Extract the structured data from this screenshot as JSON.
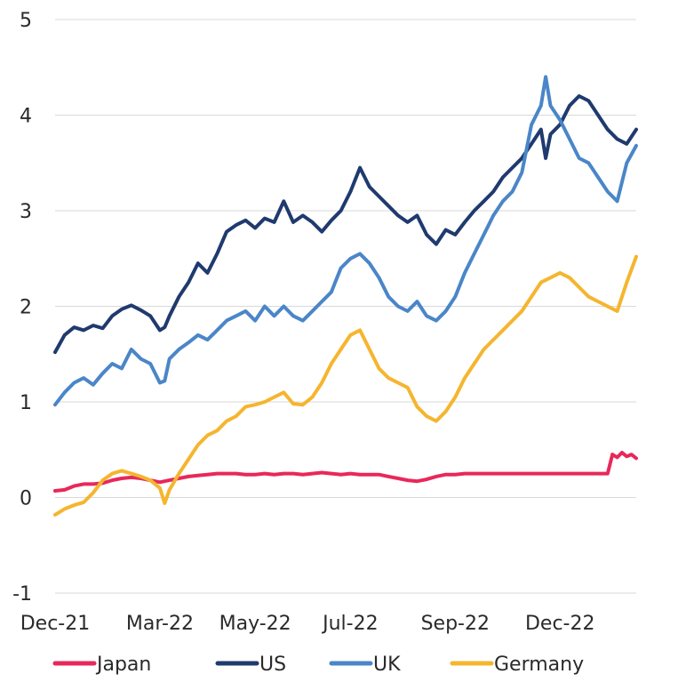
{
  "chart_data": {
    "type": "line",
    "title": "",
    "xlabel": "",
    "ylabel": "",
    "ylim": [
      -1,
      5
    ],
    "yticks": [
      "5",
      "4",
      "3",
      "2",
      "1",
      "0",
      "-1"
    ],
    "xlim": [
      0,
      61
    ],
    "xtick_positions": [
      0,
      11,
      21,
      31,
      42,
      53
    ],
    "xticks": [
      "Dec-21",
      "Mar-22",
      "May-22",
      "Jul-22",
      "Sep-22",
      "Dec-22"
    ],
    "grid": true,
    "legend": "bottom",
    "series": [
      {
        "name": "Japan",
        "color": "#e8285a",
        "points": [
          [
            0,
            0.07
          ],
          [
            1,
            0.08
          ],
          [
            2,
            0.12
          ],
          [
            3,
            0.14
          ],
          [
            4,
            0.14
          ],
          [
            5,
            0.15
          ],
          [
            6,
            0.18
          ],
          [
            7,
            0.2
          ],
          [
            8,
            0.21
          ],
          [
            9,
            0.2
          ],
          [
            10,
            0.18
          ],
          [
            11,
            0.16
          ],
          [
            12,
            0.18
          ],
          [
            13,
            0.2
          ],
          [
            14,
            0.22
          ],
          [
            15,
            0.23
          ],
          [
            16,
            0.24
          ],
          [
            17,
            0.25
          ],
          [
            18,
            0.25
          ],
          [
            19,
            0.25
          ],
          [
            20,
            0.24
          ],
          [
            21,
            0.24
          ],
          [
            22,
            0.25
          ],
          [
            23,
            0.24
          ],
          [
            24,
            0.25
          ],
          [
            25,
            0.25
          ],
          [
            26,
            0.24
          ],
          [
            27,
            0.25
          ],
          [
            28,
            0.26
          ],
          [
            29,
            0.25
          ],
          [
            30,
            0.24
          ],
          [
            31,
            0.25
          ],
          [
            32,
            0.24
          ],
          [
            33,
            0.24
          ],
          [
            34,
            0.24
          ],
          [
            35,
            0.22
          ],
          [
            36,
            0.2
          ],
          [
            37,
            0.18
          ],
          [
            38,
            0.17
          ],
          [
            39,
            0.19
          ],
          [
            40,
            0.22
          ],
          [
            41,
            0.24
          ],
          [
            42,
            0.24
          ],
          [
            43,
            0.25
          ],
          [
            44,
            0.25
          ],
          [
            45,
            0.25
          ],
          [
            46,
            0.25
          ],
          [
            47,
            0.25
          ],
          [
            48,
            0.25
          ],
          [
            49,
            0.25
          ],
          [
            50,
            0.25
          ],
          [
            51,
            0.25
          ],
          [
            52,
            0.25
          ],
          [
            53,
            0.25
          ],
          [
            54,
            0.25
          ],
          [
            55,
            0.25
          ],
          [
            56,
            0.25
          ],
          [
            57,
            0.25
          ],
          [
            58,
            0.25
          ],
          [
            58.5,
            0.45
          ],
          [
            59,
            0.42
          ],
          [
            59.5,
            0.47
          ],
          [
            60,
            0.43
          ],
          [
            60.5,
            0.45
          ],
          [
            61,
            0.41
          ]
        ]
      },
      {
        "name": "US",
        "color": "#1f3a6e",
        "points": [
          [
            0,
            1.52
          ],
          [
            1,
            1.7
          ],
          [
            2,
            1.78
          ],
          [
            3,
            1.75
          ],
          [
            4,
            1.8
          ],
          [
            5,
            1.77
          ],
          [
            6,
            1.9
          ],
          [
            7,
            1.97
          ],
          [
            8,
            2.01
          ],
          [
            9,
            1.96
          ],
          [
            10,
            1.9
          ],
          [
            11,
            1.75
          ],
          [
            11.5,
            1.78
          ],
          [
            12,
            1.9
          ],
          [
            13,
            2.1
          ],
          [
            14,
            2.25
          ],
          [
            15,
            2.45
          ],
          [
            16,
            2.35
          ],
          [
            17,
            2.55
          ],
          [
            18,
            2.78
          ],
          [
            19,
            2.85
          ],
          [
            20,
            2.9
          ],
          [
            21,
            2.82
          ],
          [
            22,
            2.92
          ],
          [
            23,
            2.88
          ],
          [
            24,
            3.1
          ],
          [
            25,
            2.88
          ],
          [
            26,
            2.95
          ],
          [
            27,
            2.88
          ],
          [
            28,
            2.78
          ],
          [
            29,
            2.9
          ],
          [
            30,
            3.0
          ],
          [
            31,
            3.2
          ],
          [
            32,
            3.45
          ],
          [
            33,
            3.25
          ],
          [
            34,
            3.15
          ],
          [
            35,
            3.05
          ],
          [
            36,
            2.95
          ],
          [
            37,
            2.88
          ],
          [
            38,
            2.95
          ],
          [
            39,
            2.75
          ],
          [
            40,
            2.65
          ],
          [
            41,
            2.8
          ],
          [
            42,
            2.75
          ],
          [
            43,
            2.88
          ],
          [
            44,
            3.0
          ],
          [
            45,
            3.1
          ],
          [
            46,
            3.2
          ],
          [
            47,
            3.35
          ],
          [
            48,
            3.45
          ],
          [
            49,
            3.55
          ],
          [
            50,
            3.7
          ],
          [
            51,
            3.85
          ],
          [
            51.5,
            3.55
          ],
          [
            52,
            3.8
          ],
          [
            53,
            3.9
          ],
          [
            54,
            4.1
          ],
          [
            55,
            4.2
          ],
          [
            56,
            4.15
          ],
          [
            57,
            4.0
          ],
          [
            58,
            3.85
          ],
          [
            59,
            3.75
          ],
          [
            60,
            3.7
          ],
          [
            61,
            3.85
          ]
        ]
      },
      {
        "name": "UK",
        "color": "#4a86c8",
        "points": [
          [
            0,
            0.97
          ],
          [
            1,
            1.1
          ],
          [
            2,
            1.2
          ],
          [
            3,
            1.25
          ],
          [
            4,
            1.18
          ],
          [
            5,
            1.3
          ],
          [
            6,
            1.4
          ],
          [
            7,
            1.35
          ],
          [
            8,
            1.55
          ],
          [
            9,
            1.45
          ],
          [
            10,
            1.4
          ],
          [
            11,
            1.2
          ],
          [
            11.5,
            1.22
          ],
          [
            12,
            1.45
          ],
          [
            13,
            1.55
          ],
          [
            14,
            1.62
          ],
          [
            15,
            1.7
          ],
          [
            16,
            1.65
          ],
          [
            17,
            1.75
          ],
          [
            18,
            1.85
          ],
          [
            19,
            1.9
          ],
          [
            20,
            1.95
          ],
          [
            21,
            1.85
          ],
          [
            22,
            2.0
          ],
          [
            23,
            1.9
          ],
          [
            24,
            2.0
          ],
          [
            25,
            1.9
          ],
          [
            26,
            1.85
          ],
          [
            27,
            1.95
          ],
          [
            28,
            2.05
          ],
          [
            29,
            2.15
          ],
          [
            30,
            2.4
          ],
          [
            31,
            2.5
          ],
          [
            32,
            2.55
          ],
          [
            33,
            2.45
          ],
          [
            34,
            2.3
          ],
          [
            35,
            2.1
          ],
          [
            36,
            2.0
          ],
          [
            37,
            1.95
          ],
          [
            38,
            2.05
          ],
          [
            39,
            1.9
          ],
          [
            40,
            1.85
          ],
          [
            41,
            1.95
          ],
          [
            42,
            2.1
          ],
          [
            43,
            2.35
          ],
          [
            44,
            2.55
          ],
          [
            45,
            2.75
          ],
          [
            46,
            2.95
          ],
          [
            47,
            3.1
          ],
          [
            48,
            3.2
          ],
          [
            49,
            3.4
          ],
          [
            50,
            3.9
          ],
          [
            51,
            4.1
          ],
          [
            51.5,
            4.4
          ],
          [
            52,
            4.1
          ],
          [
            53,
            3.95
          ],
          [
            54,
            3.75
          ],
          [
            55,
            3.55
          ],
          [
            56,
            3.5
          ],
          [
            57,
            3.35
          ],
          [
            58,
            3.2
          ],
          [
            59,
            3.1
          ],
          [
            60,
            3.5
          ],
          [
            61,
            3.68
          ]
        ]
      },
      {
        "name": "Germany",
        "color": "#f5b52e",
        "points": [
          [
            0,
            -0.18
          ],
          [
            1,
            -0.12
          ],
          [
            2,
            -0.08
          ],
          [
            3,
            -0.05
          ],
          [
            4,
            0.05
          ],
          [
            5,
            0.18
          ],
          [
            6,
            0.25
          ],
          [
            7,
            0.28
          ],
          [
            8,
            0.25
          ],
          [
            9,
            0.22
          ],
          [
            10,
            0.18
          ],
          [
            11,
            0.1
          ],
          [
            11.5,
            -0.06
          ],
          [
            12,
            0.08
          ],
          [
            13,
            0.25
          ],
          [
            14,
            0.4
          ],
          [
            15,
            0.55
          ],
          [
            16,
            0.65
          ],
          [
            17,
            0.7
          ],
          [
            18,
            0.8
          ],
          [
            19,
            0.85
          ],
          [
            20,
            0.95
          ],
          [
            21,
            0.97
          ],
          [
            22,
            1.0
          ],
          [
            23,
            1.05
          ],
          [
            24,
            1.1
          ],
          [
            25,
            0.98
          ],
          [
            26,
            0.97
          ],
          [
            27,
            1.05
          ],
          [
            28,
            1.2
          ],
          [
            29,
            1.4
          ],
          [
            30,
            1.55
          ],
          [
            31,
            1.7
          ],
          [
            32,
            1.75
          ],
          [
            33,
            1.55
          ],
          [
            34,
            1.35
          ],
          [
            35,
            1.25
          ],
          [
            36,
            1.2
          ],
          [
            37,
            1.15
          ],
          [
            38,
            0.95
          ],
          [
            39,
            0.85
          ],
          [
            40,
            0.8
          ],
          [
            41,
            0.9
          ],
          [
            42,
            1.05
          ],
          [
            43,
            1.25
          ],
          [
            44,
            1.4
          ],
          [
            45,
            1.55
          ],
          [
            46,
            1.65
          ],
          [
            47,
            1.75
          ],
          [
            48,
            1.85
          ],
          [
            49,
            1.95
          ],
          [
            50,
            2.1
          ],
          [
            51,
            2.25
          ],
          [
            52,
            2.3
          ],
          [
            53,
            2.35
          ],
          [
            54,
            2.3
          ],
          [
            55,
            2.2
          ],
          [
            56,
            2.1
          ],
          [
            57,
            2.05
          ],
          [
            58,
            2.0
          ],
          [
            59,
            1.95
          ],
          [
            60,
            2.25
          ],
          [
            61,
            2.52
          ]
        ]
      }
    ]
  }
}
